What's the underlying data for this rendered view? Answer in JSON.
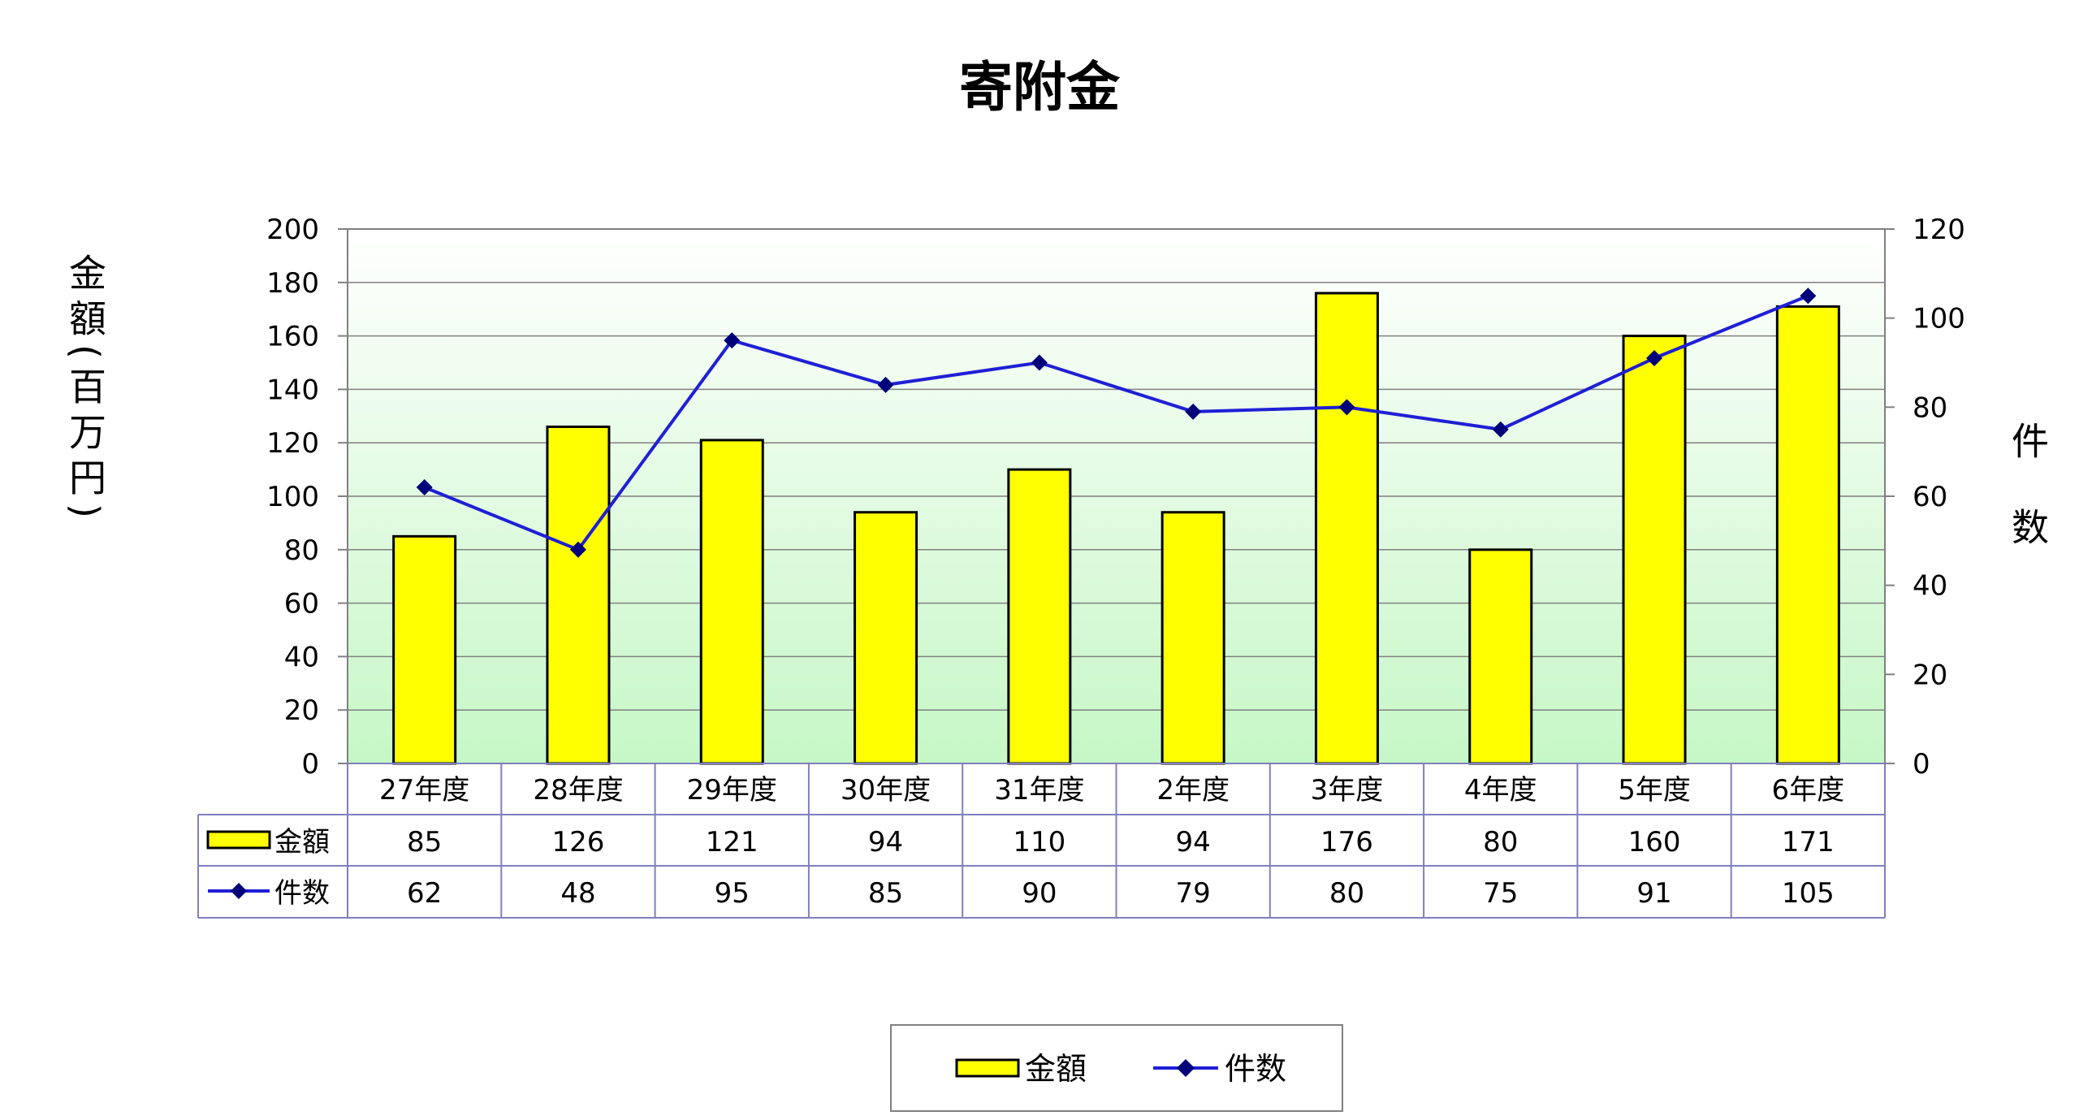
{
  "chart_data": {
    "type": "bar",
    "title": "寄附金",
    "ylabel": "金額(百万円)",
    "y2label": "件数",
    "categories": [
      "27年度",
      "28年度",
      "29年度",
      "30年度",
      "31年度",
      "2年度",
      "3年度",
      "4年度",
      "5年度",
      "6年度"
    ],
    "series": [
      {
        "name": "金額",
        "type": "bar",
        "axis": "left",
        "color": "#ffff00",
        "values": [
          85,
          126,
          121,
          94,
          110,
          94,
          176,
          80,
          160,
          171
        ]
      },
      {
        "name": "件数",
        "type": "line",
        "axis": "right",
        "color": "#1f1fd6",
        "marker": "diamond",
        "marker_color": "#00007a",
        "values": [
          62,
          48,
          95,
          85,
          90,
          79,
          80,
          75,
          91,
          105
        ]
      }
    ],
    "ylim": [
      0,
      200
    ],
    "yticks": [
      0,
      20,
      40,
      60,
      80,
      100,
      120,
      140,
      160,
      180,
      200
    ],
    "y2lim": [
      0,
      120
    ],
    "y2ticks": [
      0,
      20,
      40,
      60,
      80,
      100,
      120
    ],
    "grid": true,
    "data_table": true,
    "legend": "bottom"
  }
}
